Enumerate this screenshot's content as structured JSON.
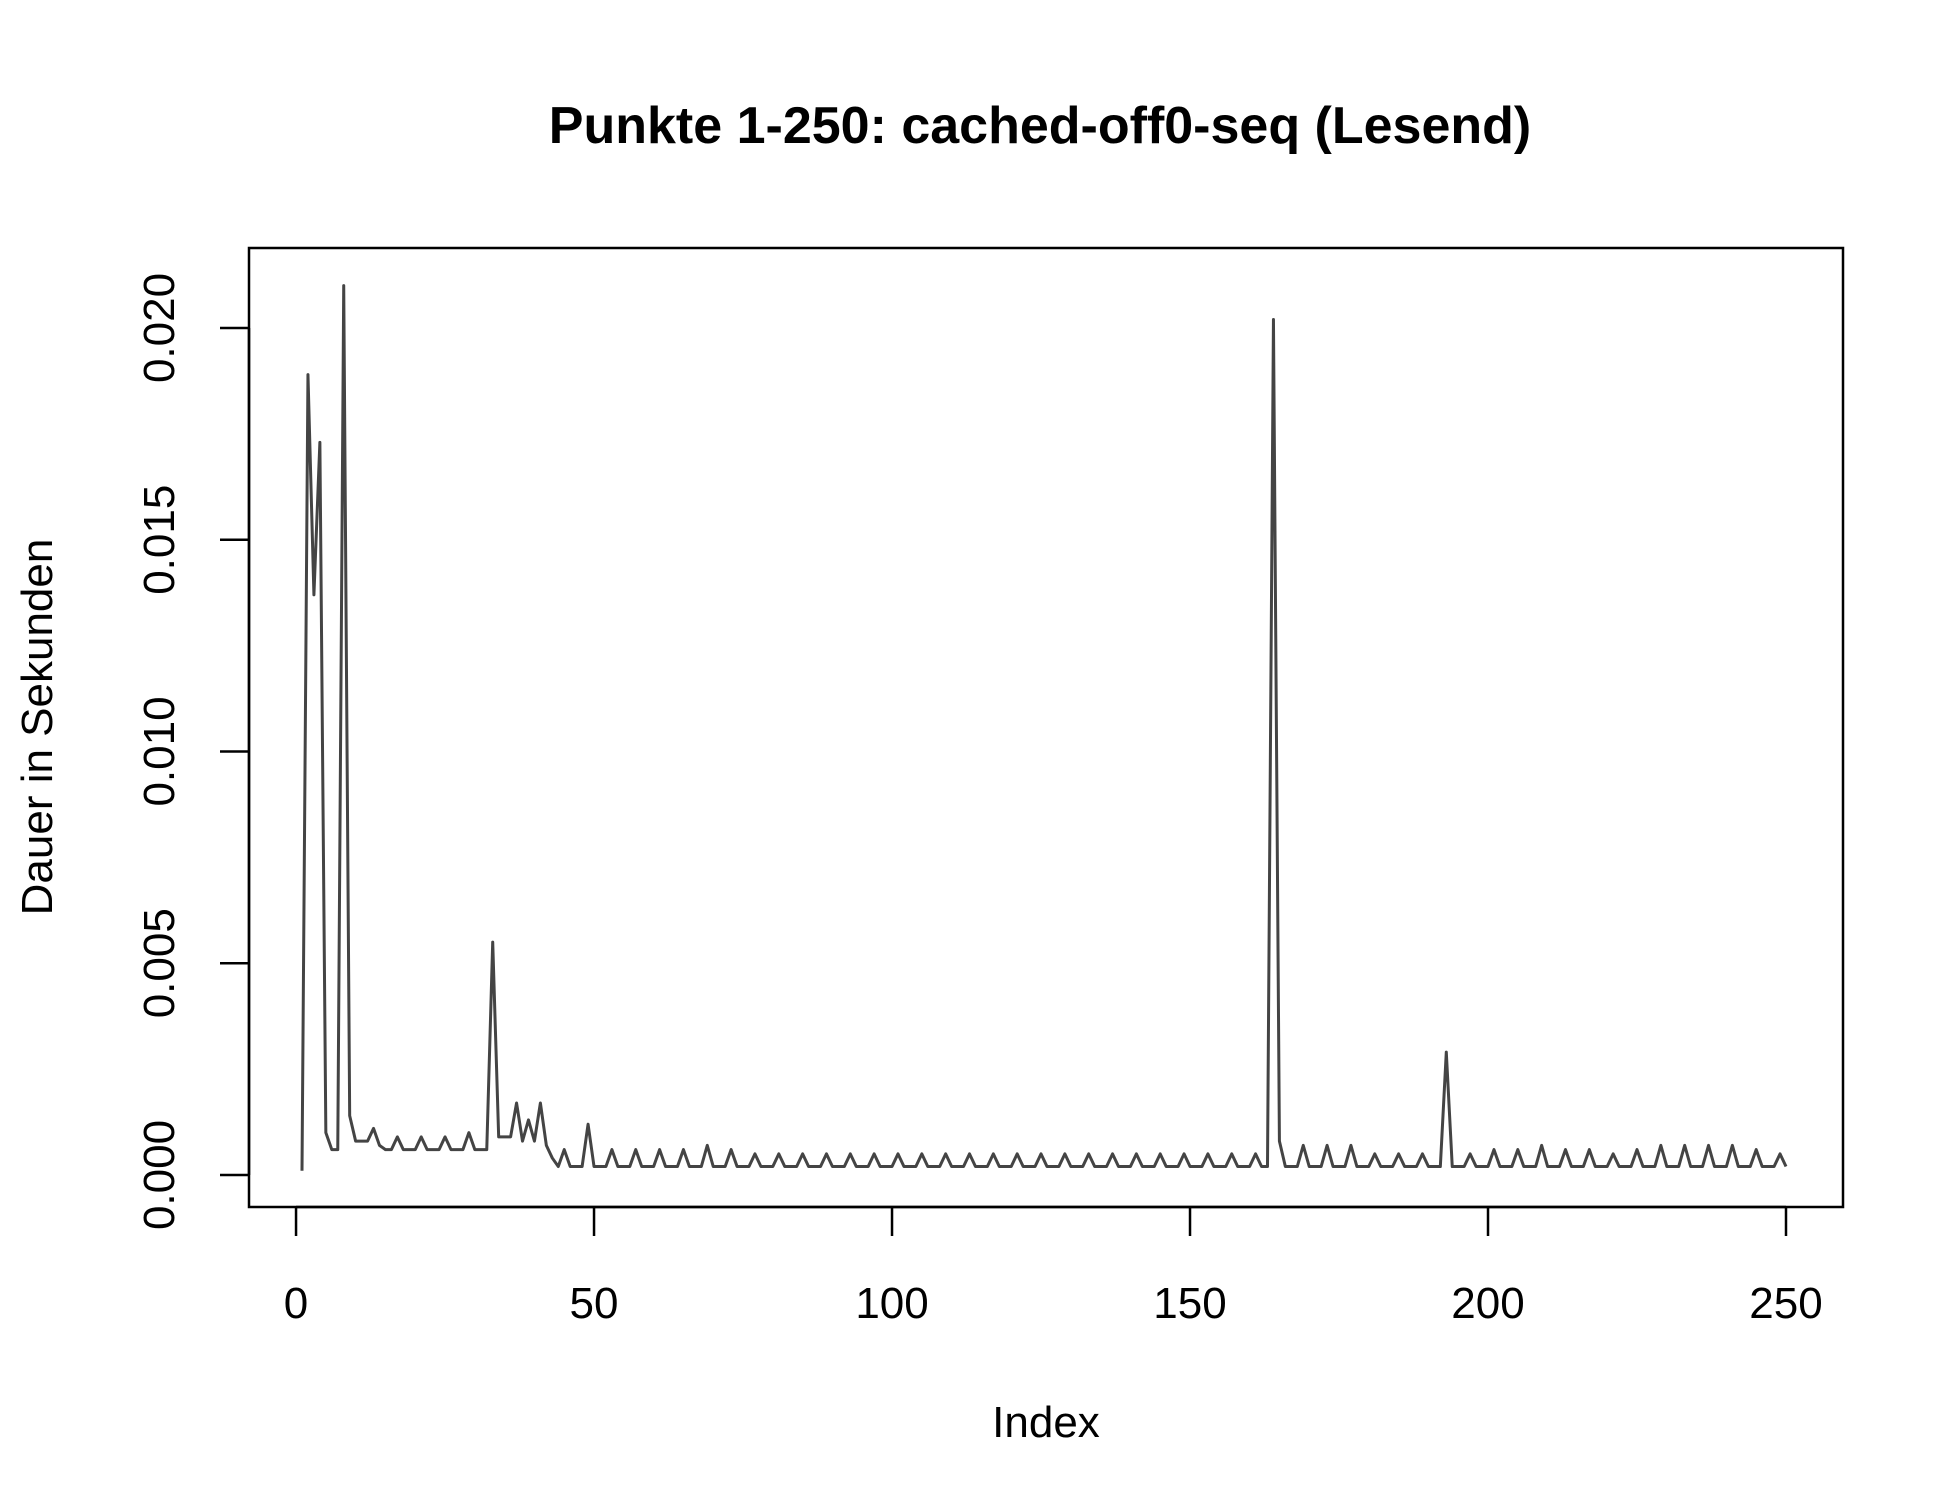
{
  "chart_data": {
    "type": "line",
    "title": "Punkte 1-250: cached-off0-seq (Lesend)",
    "xlabel": "Index",
    "ylabel": "Dauer in Sekunden",
    "xlim": [
      1,
      250
    ],
    "ylim": [
      0,
      0.021
    ],
    "x_ticks": [
      0,
      50,
      100,
      150,
      200,
      250
    ],
    "x_tick_labels": [
      "0",
      "50",
      "100",
      "150",
      "200",
      "250"
    ],
    "y_ticks": [
      0,
      0.005,
      0.01,
      0.015,
      0.02
    ],
    "y_tick_labels": [
      "0.000",
      "0.005",
      "0.010",
      "0.015",
      "0.020"
    ],
    "grid": false,
    "line_color": "#444444",
    "series": [
      {
        "values": [
          0.0001,
          0.0189,
          0.0137,
          0.0173,
          0.001,
          0.0006,
          0.0006,
          0.021,
          0.0014,
          0.0008,
          0.0008,
          0.0008,
          0.0011,
          0.0007,
          0.0006,
          0.0006,
          0.0009,
          0.0006,
          0.0006,
          0.0006,
          0.0009,
          0.0006,
          0.0006,
          0.0006,
          0.0009,
          0.0006,
          0.0006,
          0.0006,
          0.001,
          0.0006,
          0.0006,
          0.0006,
          0.0055,
          0.0009,
          0.0009,
          0.0009,
          0.0017,
          0.0008,
          0.0013,
          0.0008,
          0.0017,
          0.0007,
          0.0004,
          0.0002,
          0.0006,
          0.0002,
          0.0002,
          0.0002,
          0.0012,
          0.0002,
          0.0002,
          0.0002,
          0.0006,
          0.0002,
          0.0002,
          0.0002,
          0.0006,
          0.0002,
          0.0002,
          0.0002,
          0.0006,
          0.0002,
          0.0002,
          0.0002,
          0.0006,
          0.0002,
          0.0002,
          0.0002,
          0.0007,
          0.0002,
          0.0002,
          0.0002,
          0.0006,
          0.0002,
          0.0002,
          0.0002,
          0.0005,
          0.0002,
          0.0002,
          0.0002,
          0.0005,
          0.0002,
          0.0002,
          0.0002,
          0.0005,
          0.0002,
          0.0002,
          0.0002,
          0.0005,
          0.0002,
          0.0002,
          0.0002,
          0.0005,
          0.0002,
          0.0002,
          0.0002,
          0.0005,
          0.0002,
          0.0002,
          0.0002,
          0.0005,
          0.0002,
          0.0002,
          0.0002,
          0.0005,
          0.0002,
          0.0002,
          0.0002,
          0.0005,
          0.0002,
          0.0002,
          0.0002,
          0.0005,
          0.0002,
          0.0002,
          0.0002,
          0.0005,
          0.0002,
          0.0002,
          0.0002,
          0.0005,
          0.0002,
          0.0002,
          0.0002,
          0.0005,
          0.0002,
          0.0002,
          0.0002,
          0.0005,
          0.0002,
          0.0002,
          0.0002,
          0.0005,
          0.0002,
          0.0002,
          0.0002,
          0.0005,
          0.0002,
          0.0002,
          0.0002,
          0.0005,
          0.0002,
          0.0002,
          0.0002,
          0.0005,
          0.0002,
          0.0002,
          0.0002,
          0.0005,
          0.0002,
          0.0002,
          0.0002,
          0.0005,
          0.0002,
          0.0002,
          0.0002,
          0.0005,
          0.0002,
          0.0002,
          0.0002,
          0.0005,
          0.0002,
          0.0002,
          0.0202,
          0.0008,
          0.0002,
          0.0002,
          0.0002,
          0.0007,
          0.0002,
          0.0002,
          0.0002,
          0.0007,
          0.0002,
          0.0002,
          0.0002,
          0.0007,
          0.0002,
          0.0002,
          0.0002,
          0.0005,
          0.0002,
          0.0002,
          0.0002,
          0.0005,
          0.0002,
          0.0002,
          0.0002,
          0.0005,
          0.0002,
          0.0002,
          0.0002,
          0.0029,
          0.0002,
          0.0002,
          0.0002,
          0.0005,
          0.0002,
          0.0002,
          0.0002,
          0.0006,
          0.0002,
          0.0002,
          0.0002,
          0.0006,
          0.0002,
          0.0002,
          0.0002,
          0.0007,
          0.0002,
          0.0002,
          0.0002,
          0.0006,
          0.0002,
          0.0002,
          0.0002,
          0.0006,
          0.0002,
          0.0002,
          0.0002,
          0.0005,
          0.0002,
          0.0002,
          0.0002,
          0.0006,
          0.0002,
          0.0002,
          0.0002,
          0.0007,
          0.0002,
          0.0002,
          0.0002,
          0.0007,
          0.0002,
          0.0002,
          0.0002,
          0.0007,
          0.0002,
          0.0002,
          0.0002,
          0.0007,
          0.0002,
          0.0002,
          0.0002,
          0.0006,
          0.0002,
          0.0002,
          0.0002,
          0.0005,
          0.0002
        ]
      }
    ]
  }
}
